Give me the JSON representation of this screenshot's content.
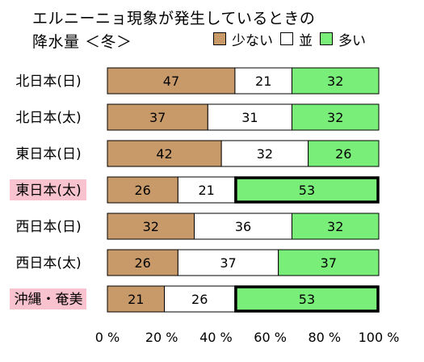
{
  "title_line1": "エルニーニョ現象が発生しているときの",
  "title_line2": "降水量 ＜冬＞",
  "legend": [
    {
      "label": "少ない",
      "color": "#c99a69"
    },
    {
      "label": "並",
      "color": "#ffffff"
    },
    {
      "label": "多い",
      "color": "#79ee79"
    }
  ],
  "colors": {
    "highlight_label_bg": "#f9c2cf",
    "border": "#000000"
  },
  "chart_data": {
    "type": "bar",
    "orientation": "horizontal",
    "stacked": true,
    "categories": [
      "北日本(日)",
      "北日本(太)",
      "東日本(日)",
      "東日本(太)",
      "西日本(日)",
      "西日本(太)",
      "沖縄・奄美"
    ],
    "highlighted_categories": [
      "東日本(太)",
      "沖縄・奄美"
    ],
    "series": [
      {
        "name": "少ない",
        "values": [
          47,
          37,
          42,
          26,
          32,
          26,
          21
        ]
      },
      {
        "name": "並",
        "values": [
          21,
          31,
          32,
          21,
          36,
          37,
          26
        ]
      },
      {
        "name": "多い",
        "values": [
          32,
          32,
          26,
          53,
          32,
          37,
          53
        ]
      }
    ],
    "emphasized_segments": [
      {
        "category": "東日本(太)",
        "series": "多い"
      },
      {
        "category": "沖縄・奄美",
        "series": "多い"
      }
    ],
    "xlim": [
      0,
      100
    ],
    "x_ticks": [
      "0 %",
      "20 %",
      "40 %",
      "60 %",
      "80 %",
      "100 %"
    ],
    "grid": false
  }
}
